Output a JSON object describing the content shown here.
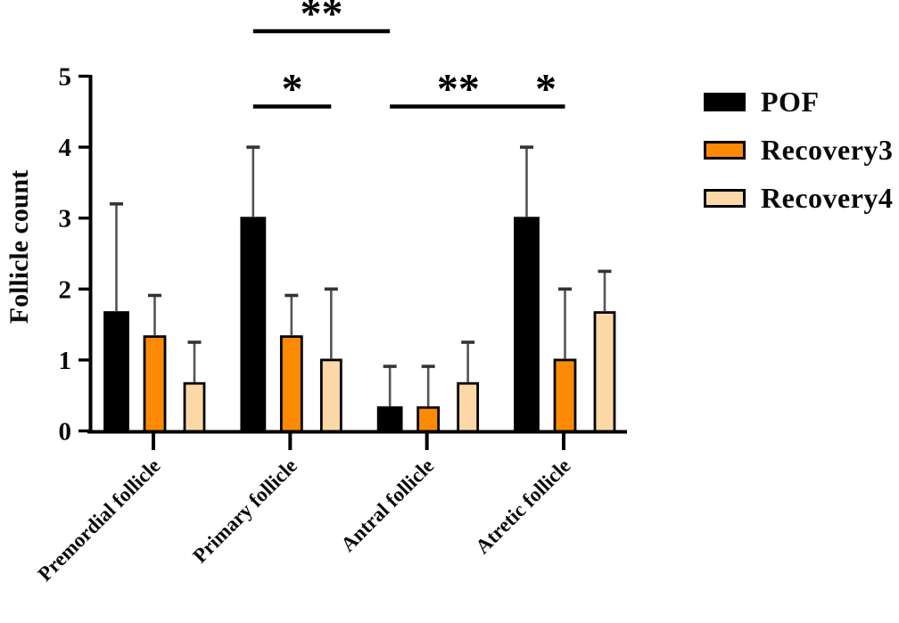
{
  "chart_data": {
    "type": "bar",
    "title": "",
    "xlabel": "",
    "ylabel": "Follicle count",
    "ylim": [
      0,
      5
    ],
    "yticks": [
      0,
      1,
      2,
      3,
      4,
      5
    ],
    "grid": false,
    "categories": [
      "Premordial follicle",
      "Primary follicle",
      "Antral follicle",
      "Atretic follicle"
    ],
    "series": [
      {
        "name": "POF",
        "fill": "#000000",
        "values": [
          1.67,
          3.0,
          0.33,
          3.0
        ],
        "sd": [
          1.53,
          1.0,
          0.58,
          1.0
        ]
      },
      {
        "name": "Recovery3",
        "fill": "#FC8A05",
        "values": [
          1.33,
          1.33,
          0.33,
          1.0
        ],
        "sd": [
          0.58,
          0.58,
          0.58,
          1.0
        ]
      },
      {
        "name": "Recovery4",
        "fill": "#FBD8A6",
        "values": [
          0.67,
          1.0,
          0.67,
          1.67
        ],
        "sd": [
          0.58,
          1.0,
          0.58,
          0.58
        ]
      }
    ],
    "error_bars": "sd, upper only",
    "significance": [
      {
        "label": "**",
        "from": {
          "category": 1,
          "series": 0
        },
        "to": {
          "category": 2,
          "series": 0
        },
        "row": "top"
      },
      {
        "label": "*",
        "from": {
          "category": 1,
          "series": 0
        },
        "to": {
          "category": 1,
          "series": 2
        },
        "row": "lower"
      },
      {
        "label": "**",
        "from": {
          "category": 2,
          "series": 0
        },
        "to": {
          "category": 3,
          "series": 0
        },
        "row": "lower"
      },
      {
        "label": "*",
        "from": {
          "category": 3,
          "series": 0
        },
        "to": {
          "category": 3,
          "series": 1
        },
        "row": "lower"
      }
    ],
    "legend": {
      "position": "right",
      "entries": [
        "POF",
        "Recovery3",
        "Recovery4"
      ]
    },
    "colors": {
      "axis": "#000000",
      "error_line": "#555555",
      "error_cap": "#333333",
      "text": "#0a0a0a"
    }
  }
}
